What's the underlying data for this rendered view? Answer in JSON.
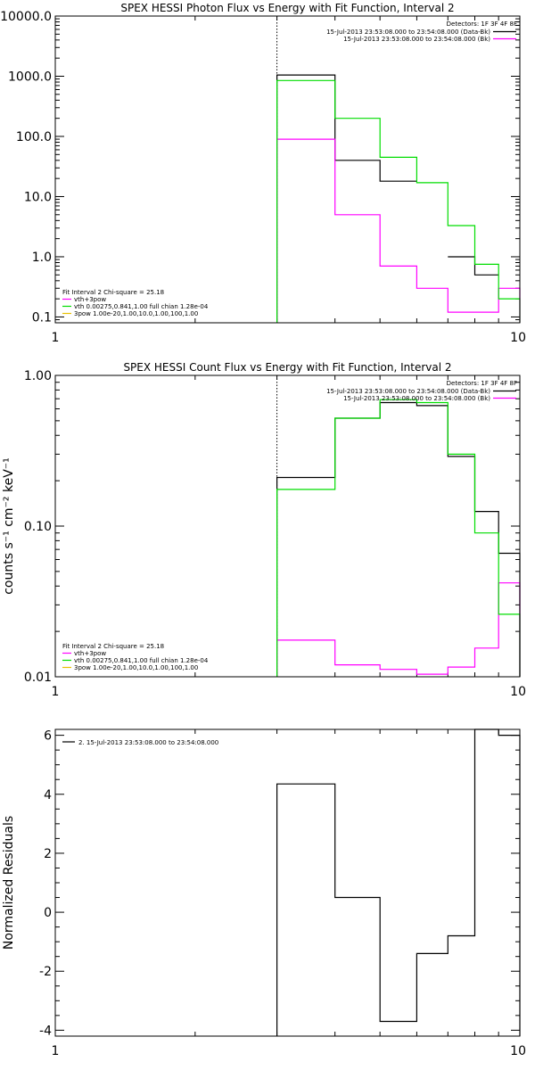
{
  "chart_data": [
    {
      "type": "line",
      "title": "SPEX HESSI Photon Flux vs Energy with Fit Function, Interval 2",
      "xlabel": "",
      "ylabel": "",
      "x_scale": "log",
      "y_scale": "log",
      "xlim": [
        1,
        10
      ],
      "ylim": [
        0.08,
        10000
      ],
      "x_ticks": [
        1,
        10
      ],
      "x_tick_labels": [
        "1",
        "10"
      ],
      "y_ticks": [
        0.1,
        1,
        10,
        100,
        1000,
        10000
      ],
      "y_tick_labels": [
        "0.1",
        "1.0",
        "10.0",
        "100.0",
        "1000.0",
        "10000.0"
      ],
      "vline": 3,
      "detectors": "Detectors: 1F 3F 4F 8F",
      "legend_placement": "top-right",
      "series": [
        {
          "name": "15-Jul-2013 23:53:08.000 to 23:54:08.000 (Data-Bk)",
          "color": "#000000",
          "bins": [
            3,
            4,
            5,
            6,
            7,
            8,
            9,
            10
          ],
          "values": [
            1050,
            40,
            18,
            null,
            1.0,
            0.5,
            null
          ]
        },
        {
          "name": "15-Jul-2013 23:53:08.000 to 23:54:08.000 (Bk)",
          "color": "#ff00ff",
          "bins": [
            3,
            4,
            5,
            6,
            7,
            8,
            9,
            10
          ],
          "values": [
            90,
            5,
            0.7,
            0.3,
            0.12,
            0.12,
            0.3
          ]
        },
        {
          "name": "vth+3pow",
          "color": "#00dd00",
          "bins": [
            3,
            4,
            5,
            6,
            7,
            8,
            9,
            10
          ],
          "values": [
            850,
            200,
            45,
            17,
            3.3,
            0.75,
            0.2
          ]
        }
      ],
      "fit_info": {
        "header": "Fit Interval 2   Chi-square = 25.18",
        "lines": [
          {
            "text": "vth+3pow",
            "color": "#ff00ff"
          },
          {
            "text": "vth 0.00275,0.841,1.00  full chian 1.28e-04",
            "color": "#00dd00"
          },
          {
            "text": "3pow 1.00e-20,1.00,10.0,1.00,100,1.00",
            "color": "#e8c000"
          }
        ]
      }
    },
    {
      "type": "line",
      "title": "SPEX HESSI Count Flux vs Energy with Fit Function, Interval 2",
      "xlabel": "",
      "ylabel": "counts s⁻¹ cm⁻² keV⁻¹",
      "x_scale": "log",
      "y_scale": "log",
      "xlim": [
        1,
        10
      ],
      "ylim": [
        0.01,
        1.0
      ],
      "x_ticks": [
        1,
        10
      ],
      "x_tick_labels": [
        "1",
        "10"
      ],
      "y_ticks": [
        0.01,
        0.1,
        1.0
      ],
      "y_tick_labels": [
        "0.01",
        "0.10",
        "1.00"
      ],
      "vline": 3,
      "detectors": "Detectors: 1F 3F 4F 8F",
      "legend_placement": "top-right",
      "series": [
        {
          "name": "15-Jul-2013 23:53:08.000 to 23:54:08.000 (Data-Bk)",
          "color": "#000000",
          "bins": [
            3,
            4,
            5,
            6,
            7,
            8,
            9,
            10
          ],
          "values": [
            0.21,
            0.52,
            0.66,
            0.63,
            0.29,
            0.125,
            0.066
          ]
        },
        {
          "name": "15-Jul-2013 23:53:08.000 to 23:54:08.000 (Bk)",
          "color": "#ff00ff",
          "bins": [
            3,
            4,
            5,
            6,
            7,
            8,
            9,
            10
          ],
          "values": [
            0.0175,
            0.012,
            0.0112,
            0.0104,
            0.0116,
            0.0155,
            0.042
          ]
        },
        {
          "name": "vth+3pow",
          "color": "#00dd00",
          "bins": [
            3,
            4,
            5,
            6,
            7,
            8,
            9,
            10
          ],
          "values": [
            0.175,
            0.52,
            0.69,
            0.66,
            0.3,
            0.09,
            0.026
          ]
        }
      ],
      "fit_info": {
        "header": "Fit Interval 2   Chi-square = 25.18",
        "lines": [
          {
            "text": "vth+3pow",
            "color": "#ff00ff"
          },
          {
            "text": "vth 0.00275,0.841,1.00  full chian 1.28e-04",
            "color": "#00dd00"
          },
          {
            "text": "3pow 1.00e-20,1.00,10.0,1.00,100,1.00",
            "color": "#e8c000"
          }
        ]
      }
    },
    {
      "type": "line",
      "title": "",
      "xlabel": "",
      "ylabel": "Normalized Residuals",
      "x_scale": "log",
      "y_scale": "linear",
      "xlim": [
        1,
        10
      ],
      "ylim": [
        -4.2,
        6.2
      ],
      "x_ticks": [
        1,
        10
      ],
      "x_tick_labels": [
        "1",
        "10"
      ],
      "y_ticks": [
        -4,
        -2,
        0,
        2,
        4,
        6
      ],
      "y_tick_labels": [
        "-4",
        "-2",
        "0",
        "2",
        "4",
        "6"
      ],
      "legend_placement": "top-left",
      "series": [
        {
          "name": "2. 15-Jul-2013 23:53:08.000 to 23:54:08.000",
          "color": "#000000",
          "bins": [
            3,
            4,
            5,
            6,
            7,
            8,
            9,
            10
          ],
          "values": [
            4.35,
            0.5,
            -3.7,
            -1.4,
            -0.8,
            6.2,
            6.0
          ]
        }
      ]
    }
  ]
}
